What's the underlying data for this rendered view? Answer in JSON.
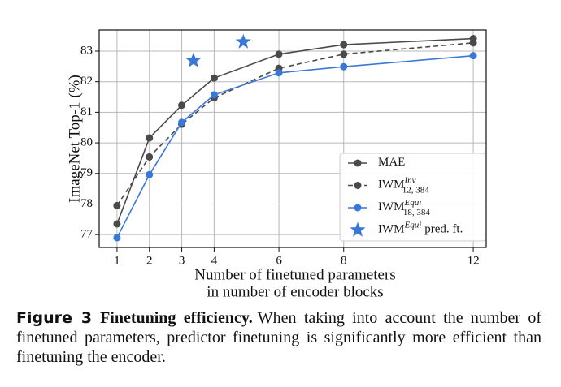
{
  "chart_data": {
    "type": "line",
    "xlabel": [
      "Number of finetuned parameters",
      "in number of encoder blocks"
    ],
    "ylabel": "ImageNet Top-1 (%)",
    "xlim": [
      0.45,
      12.4
    ],
    "ylim": [
      76.58,
      83.69
    ],
    "xticks": [
      1,
      2,
      3,
      4,
      6,
      8,
      12
    ],
    "yticks": [
      77,
      78,
      79,
      80,
      81,
      82,
      83
    ],
    "grid": true,
    "legend": "lower right",
    "series": [
      {
        "name": "MAE",
        "color": "#4a4a4a",
        "marker": "circle",
        "linestyle": "solid",
        "x": [
          1,
          2,
          3,
          4,
          6,
          8,
          12
        ],
        "values": [
          77.35,
          80.16,
          81.23,
          82.12,
          82.9,
          83.21,
          83.41
        ]
      },
      {
        "name": "IWM",
        "name_sup": "Inv",
        "name_sub": "12, 384",
        "color": "#4a4a4a",
        "marker": "circle",
        "linestyle": "dashed",
        "x": [
          1,
          2,
          3,
          4,
          6,
          8,
          12
        ],
        "values": [
          77.95,
          79.54,
          80.61,
          81.47,
          82.44,
          82.9,
          83.27
        ]
      },
      {
        "name": "IWM",
        "name_sup": "Equi",
        "name_sub": "18, 384",
        "color": "#3a78d8",
        "marker": "circle",
        "linestyle": "solid",
        "x": [
          1,
          2,
          3,
          4,
          6,
          8,
          12
        ],
        "values": [
          76.9,
          78.96,
          80.67,
          81.57,
          82.29,
          82.49,
          82.85
        ]
      },
      {
        "name": "IWM",
        "name_sup": "Equi",
        "name_suffix": "pred. ft.",
        "color": "#3a78d8",
        "marker": "star",
        "linestyle": "none",
        "x": [
          3.36,
          4.9
        ],
        "values": [
          82.69,
          83.3
        ]
      }
    ]
  },
  "caption": {
    "label": "Figure 3",
    "heading": "Finetuning efficiency.",
    "body": "When taking into account the number of finetuned parameters, predictor finetuning is significantly more efficient than finetuning the encoder."
  }
}
